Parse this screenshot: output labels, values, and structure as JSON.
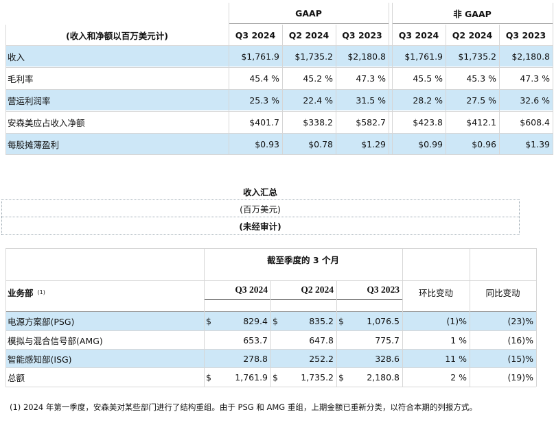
{
  "table1": {
    "unit_header": "(收入和净额以百万美元计)",
    "group_gaap": "GAAP",
    "group_non_gaap": "非 GAAP",
    "periods": [
      "Q3 2024",
      "Q2 2024",
      "Q3 2023"
    ],
    "rows": [
      {
        "label": "收入",
        "gaap": [
          "$1,761.9",
          "$1,735.2",
          "$2,180.8"
        ],
        "non_gaap": [
          "$1,761.9",
          "$1,735.2",
          "$2,180.8"
        ]
      },
      {
        "label": "毛利率",
        "gaap": [
          "45.4 %",
          "45.2 %",
          "47.3 %"
        ],
        "non_gaap": [
          "45.5 %",
          "45.3 %",
          "47.3 %"
        ]
      },
      {
        "label": "营运利润率",
        "gaap": [
          "25.3 %",
          "22.4 %",
          "31.5 %"
        ],
        "non_gaap": [
          "28.2 %",
          "27.5 %",
          "32.6 %"
        ]
      },
      {
        "label": "安森美应占收入净额",
        "gaap": [
          "$401.7",
          "$338.2",
          "$582.7"
        ],
        "non_gaap": [
          "$423.8",
          "$412.1",
          "$608.4"
        ]
      },
      {
        "label": "每股摊薄盈利",
        "gaap": [
          "$0.93",
          "$0.78",
          "$1.29"
        ],
        "non_gaap": [
          "$0.99",
          "$0.96",
          "$1.39"
        ]
      }
    ]
  },
  "table2": {
    "title": "收入汇总",
    "unit": "(百万美元)",
    "note": "(未经审计)"
  },
  "table3": {
    "period_header": "截至季度的 3 个月",
    "segment_header": "业务部",
    "segment_footnote_mark": "(1)",
    "periods": [
      "Q3 2024",
      "Q2 2024",
      "Q3 2023"
    ],
    "qoq_header": "环比变动",
    "yoy_header": "同比变动",
    "currency_symbol": "$",
    "rows": [
      {
        "label": "电源方案部(PSG)",
        "values": [
          "829.4",
          "835.2",
          "1,076.5"
        ],
        "show_currency": true,
        "qoq": "(1)%",
        "yoy": "(23)%"
      },
      {
        "label": "模拟与混合信号部(AMG)",
        "values": [
          "653.7",
          "647.8",
          "775.7"
        ],
        "show_currency": false,
        "qoq": "1 %",
        "yoy": "(16)%"
      },
      {
        "label": "智能感知部(ISG)",
        "values": [
          "278.8",
          "252.2",
          "328.6"
        ],
        "show_currency": false,
        "qoq": "11 %",
        "yoy": "(15)%"
      },
      {
        "label": "总额",
        "values": [
          "1,761.9",
          "1,735.2",
          "2,180.8"
        ],
        "show_currency": true,
        "qoq": "2 %",
        "yoy": "(19)%"
      }
    ]
  },
  "footnote": "(1) 2024 年第一季度，安森美对某些部门进行了结构重组。由于 PSG 和 AMG 重组，上期金额已重新分类，以符合本期的列报方式。",
  "colors": {
    "row_highlight": "#cde7f7",
    "rule": "#d6d6d6"
  }
}
